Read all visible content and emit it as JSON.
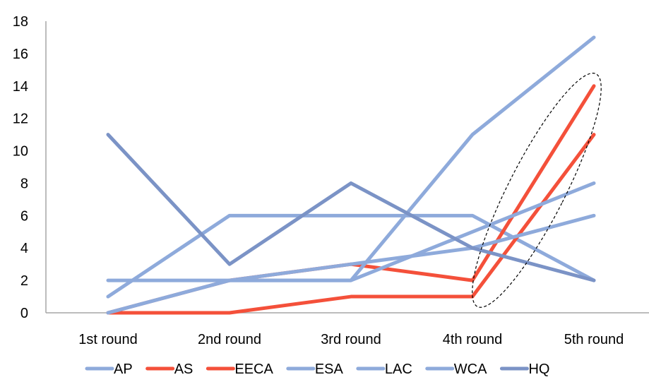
{
  "chart_data": {
    "type": "line",
    "categories": [
      "1st round",
      "2nd round",
      "3rd round",
      "4th round",
      "5th round"
    ],
    "ylim": [
      0,
      18
    ],
    "yticks": [
      0,
      2,
      4,
      6,
      8,
      10,
      12,
      14,
      16,
      18
    ],
    "grid": false,
    "legend_position": "bottom",
    "series": [
      {
        "name": "AP",
        "color": "#8eaadb",
        "values": [
          1,
          6,
          6,
          6,
          2
        ]
      },
      {
        "name": "AS",
        "color": "#f4503a",
        "values": [
          0,
          2,
          3,
          2,
          14
        ]
      },
      {
        "name": "EECA",
        "color": "#f4503a",
        "values": [
          0,
          0,
          1,
          1,
          11
        ]
      },
      {
        "name": "ESA",
        "color": "#8eaadb",
        "values": [
          2,
          2,
          2,
          11,
          17
        ]
      },
      {
        "name": "LAC",
        "color": "#8eaadb",
        "values": [
          0,
          2,
          2,
          5,
          8
        ]
      },
      {
        "name": "WCA",
        "color": "#8eaadb",
        "values": [
          0,
          2,
          3,
          4,
          6
        ]
      },
      {
        "name": "HQ",
        "color": "#7b93c6",
        "values": [
          11,
          3,
          8,
          4,
          2
        ]
      }
    ],
    "annotation": {
      "shape": "dashed-ellipse",
      "around": [
        "4th round",
        "5th round"
      ]
    }
  }
}
